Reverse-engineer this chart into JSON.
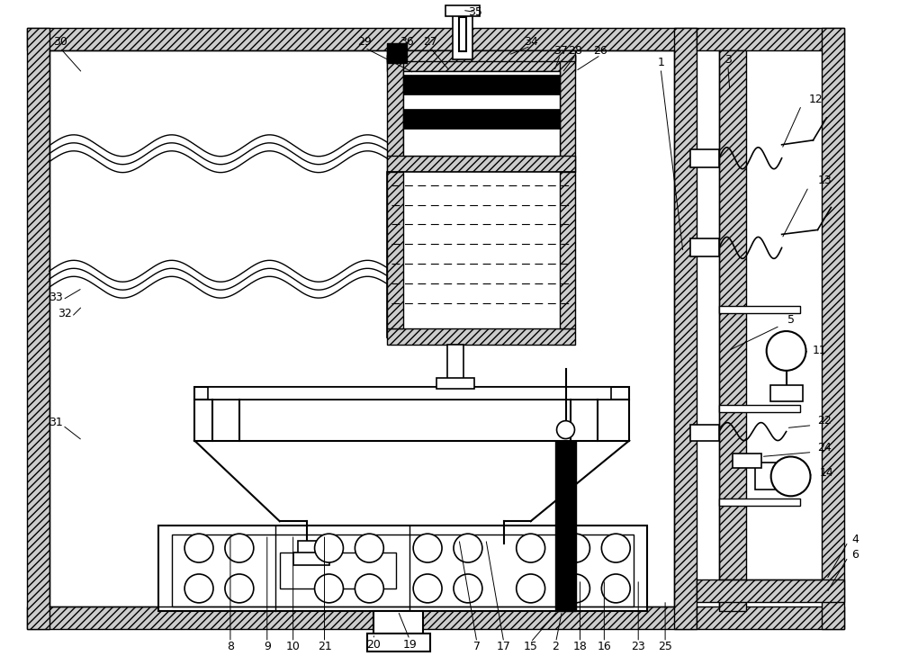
{
  "bg_color": "#ffffff",
  "fig_width": 10.0,
  "fig_height": 7.39,
  "dpi": 100,
  "wall_hatch": "////",
  "wall_color": "#d0d0d0",
  "label_font": 9.0
}
